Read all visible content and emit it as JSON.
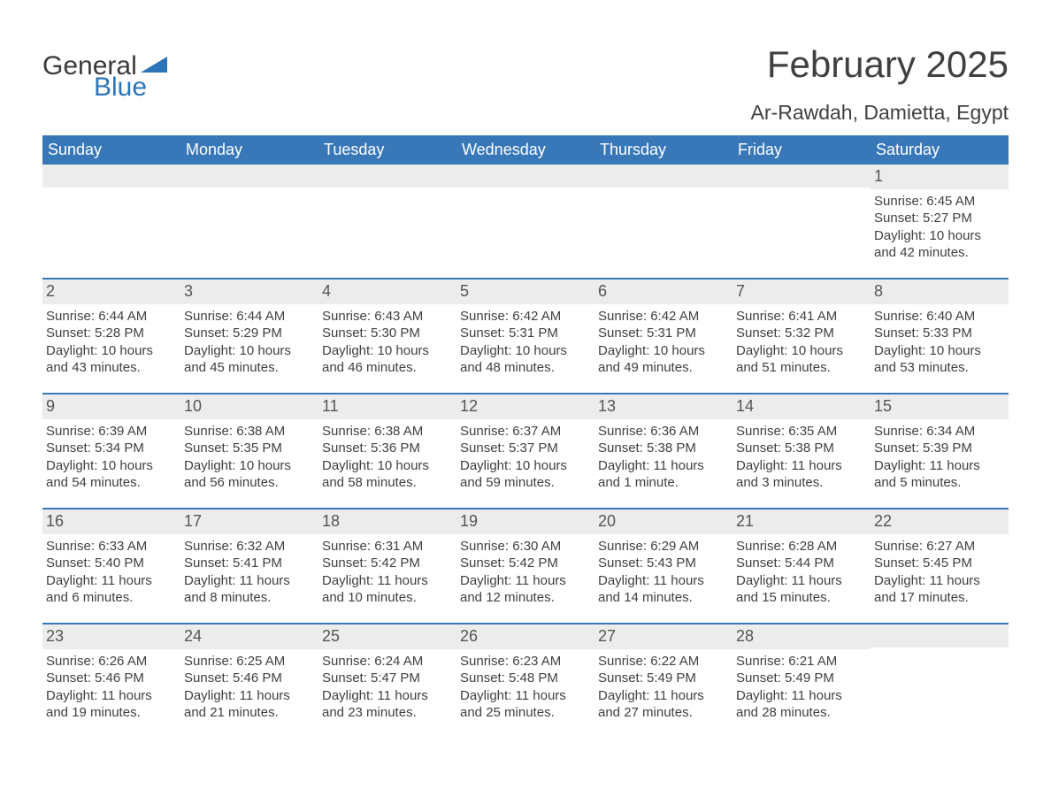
{
  "brand": {
    "word1": "General",
    "word2": "Blue"
  },
  "title": "February 2025",
  "location": "Ar-Rawdah, Damietta, Egypt",
  "colors": {
    "header_bg": "#3878b8",
    "header_text": "#ffffff",
    "row_border": "#3878b8",
    "daynum_bg": "#ececec",
    "body_text": "#404040",
    "logo_blue": "#2b74b8"
  },
  "dow": [
    "Sunday",
    "Monday",
    "Tuesday",
    "Wednesday",
    "Thursday",
    "Friday",
    "Saturday"
  ],
  "weeks": [
    [
      null,
      null,
      null,
      null,
      null,
      null,
      {
        "n": "1",
        "sunrise": "Sunrise: 6:45 AM",
        "sunset": "Sunset: 5:27 PM",
        "daylight": "Daylight: 10 hours and 42 minutes."
      }
    ],
    [
      {
        "n": "2",
        "sunrise": "Sunrise: 6:44 AM",
        "sunset": "Sunset: 5:28 PM",
        "daylight": "Daylight: 10 hours and 43 minutes."
      },
      {
        "n": "3",
        "sunrise": "Sunrise: 6:44 AM",
        "sunset": "Sunset: 5:29 PM",
        "daylight": "Daylight: 10 hours and 45 minutes."
      },
      {
        "n": "4",
        "sunrise": "Sunrise: 6:43 AM",
        "sunset": "Sunset: 5:30 PM",
        "daylight": "Daylight: 10 hours and 46 minutes."
      },
      {
        "n": "5",
        "sunrise": "Sunrise: 6:42 AM",
        "sunset": "Sunset: 5:31 PM",
        "daylight": "Daylight: 10 hours and 48 minutes."
      },
      {
        "n": "6",
        "sunrise": "Sunrise: 6:42 AM",
        "sunset": "Sunset: 5:31 PM",
        "daylight": "Daylight: 10 hours and 49 minutes."
      },
      {
        "n": "7",
        "sunrise": "Sunrise: 6:41 AM",
        "sunset": "Sunset: 5:32 PM",
        "daylight": "Daylight: 10 hours and 51 minutes."
      },
      {
        "n": "8",
        "sunrise": "Sunrise: 6:40 AM",
        "sunset": "Sunset: 5:33 PM",
        "daylight": "Daylight: 10 hours and 53 minutes."
      }
    ],
    [
      {
        "n": "9",
        "sunrise": "Sunrise: 6:39 AM",
        "sunset": "Sunset: 5:34 PM",
        "daylight": "Daylight: 10 hours and 54 minutes."
      },
      {
        "n": "10",
        "sunrise": "Sunrise: 6:38 AM",
        "sunset": "Sunset: 5:35 PM",
        "daylight": "Daylight: 10 hours and 56 minutes."
      },
      {
        "n": "11",
        "sunrise": "Sunrise: 6:38 AM",
        "sunset": "Sunset: 5:36 PM",
        "daylight": "Daylight: 10 hours and 58 minutes."
      },
      {
        "n": "12",
        "sunrise": "Sunrise: 6:37 AM",
        "sunset": "Sunset: 5:37 PM",
        "daylight": "Daylight: 10 hours and 59 minutes."
      },
      {
        "n": "13",
        "sunrise": "Sunrise: 6:36 AM",
        "sunset": "Sunset: 5:38 PM",
        "daylight": "Daylight: 11 hours and 1 minute."
      },
      {
        "n": "14",
        "sunrise": "Sunrise: 6:35 AM",
        "sunset": "Sunset: 5:38 PM",
        "daylight": "Daylight: 11 hours and 3 minutes."
      },
      {
        "n": "15",
        "sunrise": "Sunrise: 6:34 AM",
        "sunset": "Sunset: 5:39 PM",
        "daylight": "Daylight: 11 hours and 5 minutes."
      }
    ],
    [
      {
        "n": "16",
        "sunrise": "Sunrise: 6:33 AM",
        "sunset": "Sunset: 5:40 PM",
        "daylight": "Daylight: 11 hours and 6 minutes."
      },
      {
        "n": "17",
        "sunrise": "Sunrise: 6:32 AM",
        "sunset": "Sunset: 5:41 PM",
        "daylight": "Daylight: 11 hours and 8 minutes."
      },
      {
        "n": "18",
        "sunrise": "Sunrise: 6:31 AM",
        "sunset": "Sunset: 5:42 PM",
        "daylight": "Daylight: 11 hours and 10 minutes."
      },
      {
        "n": "19",
        "sunrise": "Sunrise: 6:30 AM",
        "sunset": "Sunset: 5:42 PM",
        "daylight": "Daylight: 11 hours and 12 minutes."
      },
      {
        "n": "20",
        "sunrise": "Sunrise: 6:29 AM",
        "sunset": "Sunset: 5:43 PM",
        "daylight": "Daylight: 11 hours and 14 minutes."
      },
      {
        "n": "21",
        "sunrise": "Sunrise: 6:28 AM",
        "sunset": "Sunset: 5:44 PM",
        "daylight": "Daylight: 11 hours and 15 minutes."
      },
      {
        "n": "22",
        "sunrise": "Sunrise: 6:27 AM",
        "sunset": "Sunset: 5:45 PM",
        "daylight": "Daylight: 11 hours and 17 minutes."
      }
    ],
    [
      {
        "n": "23",
        "sunrise": "Sunrise: 6:26 AM",
        "sunset": "Sunset: 5:46 PM",
        "daylight": "Daylight: 11 hours and 19 minutes."
      },
      {
        "n": "24",
        "sunrise": "Sunrise: 6:25 AM",
        "sunset": "Sunset: 5:46 PM",
        "daylight": "Daylight: 11 hours and 21 minutes."
      },
      {
        "n": "25",
        "sunrise": "Sunrise: 6:24 AM",
        "sunset": "Sunset: 5:47 PM",
        "daylight": "Daylight: 11 hours and 23 minutes."
      },
      {
        "n": "26",
        "sunrise": "Sunrise: 6:23 AM",
        "sunset": "Sunset: 5:48 PM",
        "daylight": "Daylight: 11 hours and 25 minutes."
      },
      {
        "n": "27",
        "sunrise": "Sunrise: 6:22 AM",
        "sunset": "Sunset: 5:49 PM",
        "daylight": "Daylight: 11 hours and 27 minutes."
      },
      {
        "n": "28",
        "sunrise": "Sunrise: 6:21 AM",
        "sunset": "Sunset: 5:49 PM",
        "daylight": "Daylight: 11 hours and 28 minutes."
      },
      null
    ]
  ]
}
